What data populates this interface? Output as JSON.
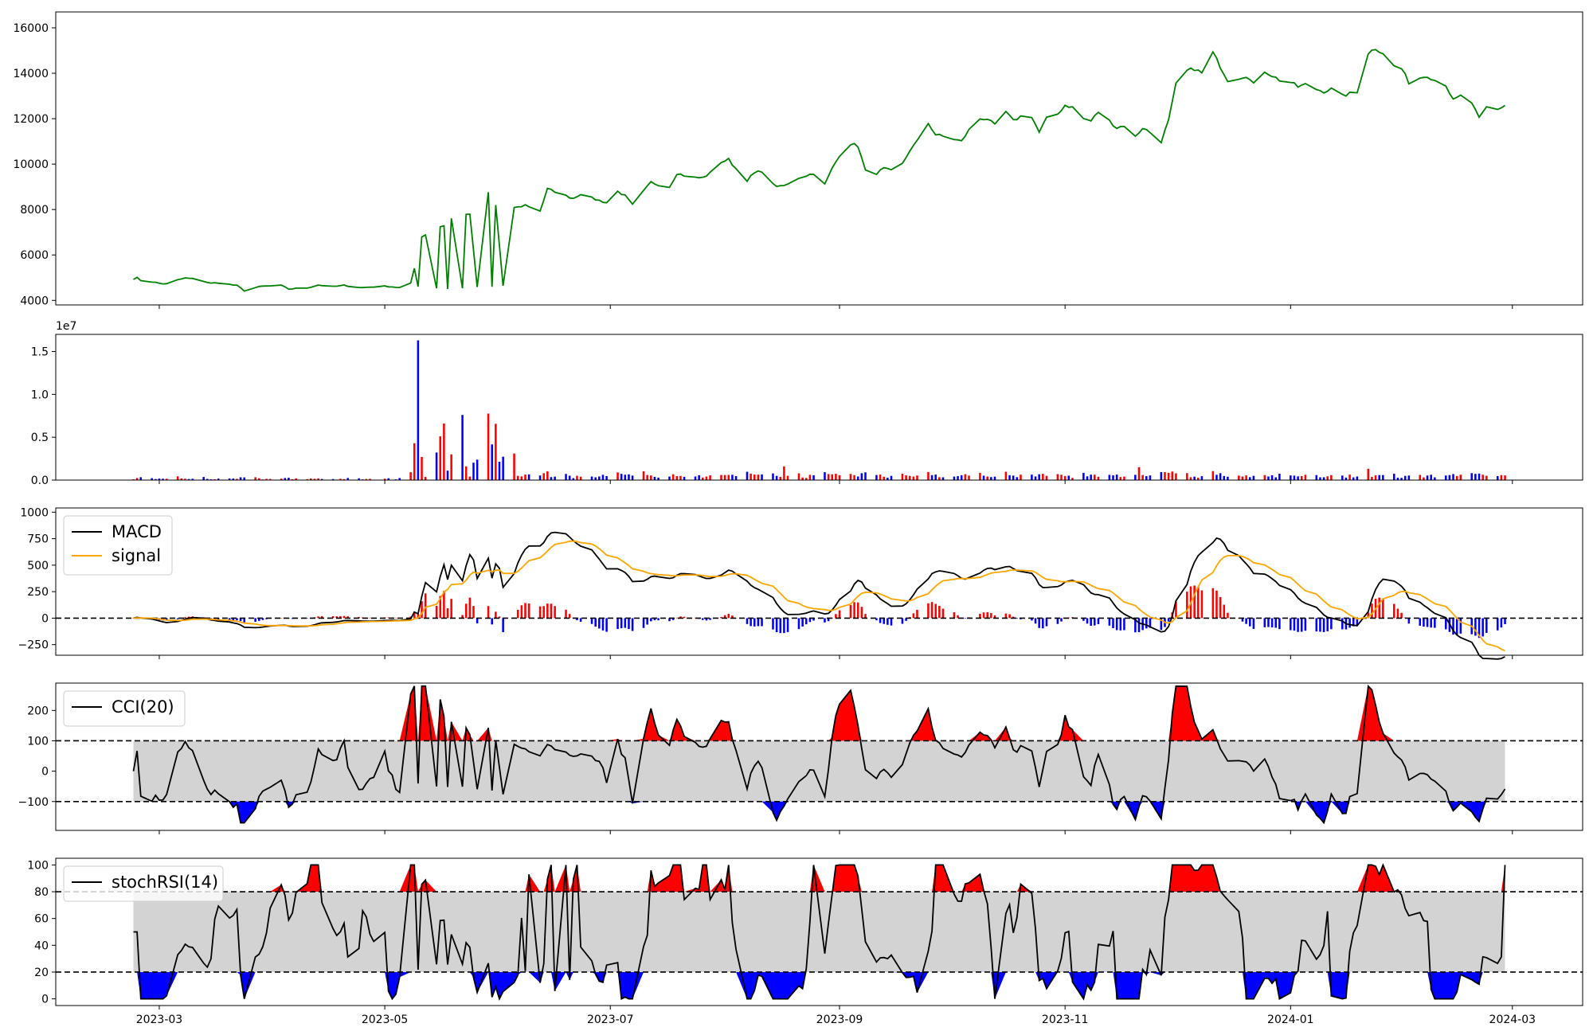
{
  "chart_data": [
    {
      "id": "price",
      "type": "line",
      "series": [
        {
          "color": "#008000",
          "points": [
            [
              "2023-02-22",
              4950
            ],
            [
              "2023-02-23",
              4990
            ],
            [
              "2023-02-24",
              4880
            ],
            [
              "2023-02-27",
              4820
            ],
            [
              "2023-03-01",
              4750
            ],
            [
              "2023-03-03",
              4720
            ],
            [
              "2023-03-06",
              4900
            ],
            [
              "2023-03-08",
              4980
            ],
            [
              "2023-03-10",
              4950
            ],
            [
              "2023-03-13",
              4850
            ],
            [
              "2023-03-15",
              4750
            ],
            [
              "2023-03-17",
              4780
            ],
            [
              "2023-03-20",
              4700
            ],
            [
              "2023-03-22",
              4650
            ],
            [
              "2023-03-24",
              4430
            ],
            [
              "2023-03-27",
              4560
            ],
            [
              "2023-03-29",
              4620
            ],
            [
              "2023-04-03",
              4650
            ],
            [
              "2023-04-05",
              4500
            ],
            [
              "2023-04-10",
              4550
            ],
            [
              "2023-04-13",
              4680
            ],
            [
              "2023-04-17",
              4600
            ],
            [
              "2023-04-20",
              4660
            ],
            [
              "2023-04-25",
              4560
            ],
            [
              "2023-04-28",
              4600
            ],
            [
              "2023-05-02",
              4620
            ],
            [
              "2023-05-05",
              4560
            ],
            [
              "2023-05-08",
              4740
            ],
            [
              "2023-05-10",
              4620
            ],
            [
              "2023-05-15",
              4540
            ],
            [
              "2023-05-18",
              4500
            ],
            [
              "2023-05-22",
              4550
            ],
            [
              "2023-05-26",
              4580
            ],
            [
              "2023-05-30",
              4600
            ],
            [
              "2023-06-02",
              4620
            ],
            [
              "2023-05-03",
              4600
            ],
            [
              "2023-05-05",
              4950
            ],
            [
              "2023-05-08",
              6200
            ],
            [
              "2023-05-10",
              6700
            ],
            [
              "2023-05-12",
              6900
            ],
            [
              "2023-05-15",
              7200
            ],
            [
              "2023-05-17",
              7300
            ],
            [
              "2023-05-19",
              7600
            ],
            [
              "2023-05-22",
              7700
            ],
            [
              "2023-05-24",
              7800
            ],
            [
              "2023-05-26",
              8700
            ],
            [
              "2023-05-29",
              8750
            ],
            [
              "2023-05-31",
              8200
            ],
            [
              "2023-06-02",
              8100
            ],
            [
              "2023-06-06",
              8100
            ],
            [
              "2023-06-08",
              8200
            ],
            [
              "2023-06-12",
              7950
            ],
            [
              "2023-06-14",
              8900
            ],
            [
              "2023-06-16",
              8800
            ],
            [
              "2023-06-19",
              8600
            ],
            [
              "2023-06-21",
              8500
            ],
            [
              "2023-06-23",
              8700
            ],
            [
              "2023-06-26",
              8500
            ],
            [
              "2023-06-28",
              8400
            ],
            [
              "2023-06-30",
              8300
            ],
            [
              "2023-07-03",
              8800
            ],
            [
              "2023-07-05",
              8600
            ],
            [
              "2023-07-07",
              8200
            ],
            [
              "2023-07-10",
              8800
            ],
            [
              "2023-07-12",
              9200
            ],
            [
              "2023-07-14",
              9100
            ],
            [
              "2023-07-17",
              9000
            ],
            [
              "2023-07-19",
              9600
            ],
            [
              "2023-07-21",
              9500
            ],
            [
              "2023-07-24",
              9400
            ],
            [
              "2023-07-26",
              9400
            ],
            [
              "2023-07-28",
              9600
            ],
            [
              "2023-07-31",
              10100
            ],
            [
              "2023-08-02",
              10200
            ],
            [
              "2023-08-04",
              9800
            ],
            [
              "2023-08-07",
              9300
            ],
            [
              "2023-08-09",
              9600
            ],
            [
              "2023-08-11",
              9700
            ],
            [
              "2023-08-14",
              9100
            ],
            [
              "2023-08-16",
              9000
            ],
            [
              "2023-08-18",
              9100
            ],
            [
              "2023-08-21",
              9400
            ],
            [
              "2023-08-23",
              9500
            ],
            [
              "2023-08-25",
              9600
            ],
            [
              "2023-08-28",
              9100
            ],
            [
              "2023-08-30",
              9800
            ],
            [
              "2023-09-01",
              10400
            ],
            [
              "2023-09-04",
              10900
            ],
            [
              "2023-09-06",
              10800
            ],
            [
              "2023-09-08",
              9700
            ],
            [
              "2023-09-11",
              9600
            ],
            [
              "2023-09-13",
              9800
            ],
            [
              "2023-09-15",
              9700
            ],
            [
              "2023-09-18",
              10000
            ],
            [
              "2023-09-20",
              10600
            ],
            [
              "2023-09-22",
              11000
            ],
            [
              "2023-09-25",
              11800
            ],
            [
              "2023-09-27",
              11300
            ],
            [
              "2023-10-02",
              11100
            ],
            [
              "2023-10-04",
              11000
            ],
            [
              "2023-10-06",
              11500
            ],
            [
              "2023-10-09",
              12000
            ],
            [
              "2023-10-11",
              12000
            ],
            [
              "2023-10-13",
              11700
            ],
            [
              "2023-10-16",
              12300
            ],
            [
              "2023-10-18",
              11900
            ],
            [
              "2023-10-20",
              12100
            ],
            [
              "2023-10-23",
              12100
            ],
            [
              "2023-10-25",
              11400
            ],
            [
              "2023-10-27",
              12000
            ],
            [
              "2023-10-30",
              12200
            ],
            [
              "2023-11-01",
              12600
            ],
            [
              "2023-11-03",
              12500
            ],
            [
              "2023-11-06",
              12000
            ],
            [
              "2023-11-08",
              11900
            ],
            [
              "2023-11-10",
              12300
            ],
            [
              "2023-11-13",
              11900
            ],
            [
              "2023-11-15",
              11600
            ],
            [
              "2023-11-17",
              11700
            ],
            [
              "2023-11-20",
              11200
            ],
            [
              "2023-11-22",
              11600
            ],
            [
              "2023-11-24",
              11400
            ],
            [
              "2023-11-27",
              11000
            ],
            [
              "2023-11-29",
              11900
            ],
            [
              "2023-12-01",
              13500
            ],
            [
              "2023-12-04",
              14100
            ],
            [
              "2023-12-06",
              14200
            ],
            [
              "2023-12-08",
              14000
            ],
            [
              "2023-12-11",
              14900
            ],
            [
              "2023-12-13",
              14300
            ],
            [
              "2023-12-15",
              13700
            ],
            [
              "2023-12-18",
              13800
            ],
            [
              "2023-12-20",
              13900
            ],
            [
              "2023-12-22",
              13500
            ],
            [
              "2023-12-25",
              14100
            ],
            [
              "2023-12-27",
              13900
            ],
            [
              "2023-12-29",
              13700
            ],
            [
              "2024-01-01",
              13600
            ],
            [
              "2024-01-03",
              13400
            ],
            [
              "2024-01-05",
              13500
            ],
            [
              "2024-01-08",
              13300
            ],
            [
              "2024-01-10",
              13200
            ],
            [
              "2024-01-12",
              13300
            ],
            [
              "2024-01-15",
              13000
            ],
            [
              "2024-01-17",
              13100
            ],
            [
              "2024-01-19",
              13200
            ],
            [
              "2024-01-22",
              14900
            ],
            [
              "2024-01-24",
              15100
            ],
            [
              "2024-01-26",
              14900
            ],
            [
              "2024-01-29",
              14300
            ],
            [
              "2024-01-31",
              14200
            ],
            [
              "2024-02-02",
              13600
            ],
            [
              "2024-02-05",
              13800
            ],
            [
              "2024-02-07",
              13900
            ],
            [
              "2024-02-09",
              13700
            ],
            [
              "2024-02-12",
              13500
            ],
            [
              "2024-02-14",
              12800
            ],
            [
              "2024-02-16",
              13000
            ],
            [
              "2024-02-19",
              12700
            ],
            [
              "2024-02-21",
              12000
            ],
            [
              "2024-02-23",
              12500
            ],
            [
              "2024-02-26",
              12400
            ],
            [
              "2024-02-28",
              12600
            ]
          ]
        }
      ],
      "ylim": [
        3800,
        16700
      ],
      "yticks": [
        4000,
        6000,
        8000,
        10000,
        12000,
        14000,
        16000
      ],
      "ytick_labels": [
        "4000",
        "6000",
        "8000",
        "10000",
        "12000",
        "14000",
        "16000"
      ]
    },
    {
      "id": "volume",
      "type": "bar",
      "offset_text": "1e7",
      "ylim": [
        0,
        17000000
      ],
      "yticks": [
        0,
        5000000,
        10000000,
        15000000
      ],
      "ytick_labels": [
        "0.0",
        "0.5",
        "1.0",
        "1.5"
      ],
      "up_color": "#ff0000",
      "down_color": "#0000ff"
    },
    {
      "id": "macd",
      "type": "line",
      "legend": [
        "MACD",
        "signal"
      ],
      "legend_position": "upper-left",
      "series_colors": [
        "#000000",
        "#ffa500"
      ],
      "hist_up_color": "#ff0000",
      "hist_down_color": "#0000ff",
      "zero_line": 0,
      "ylim": [
        -350,
        1040
      ],
      "yticks": [
        -250,
        0,
        250,
        500,
        750,
        1000
      ],
      "ytick_labels": [
        "−250",
        "0",
        "250",
        "500",
        "750",
        "1000"
      ]
    },
    {
      "id": "cci",
      "type": "area",
      "legend": [
        "CCI(20)"
      ],
      "legend_position": "upper-left",
      "line_color": "#000000",
      "band_color": "#d3d3d3",
      "over_color": "#ff0000",
      "under_color": "#0000ff",
      "thresholds": [
        100,
        -100
      ],
      "ylim": [
        -195,
        290
      ],
      "yticks": [
        -100,
        0,
        100,
        200
      ],
      "ytick_labels": [
        "−100",
        "0",
        "100",
        "200"
      ]
    },
    {
      "id": "stochrsi",
      "type": "area",
      "legend": [
        "stochRSI(14)"
      ],
      "legend_position": "upper-left",
      "line_color": "#000000",
      "band_color": "#d3d3d3",
      "over_color": "#ff0000",
      "under_color": "#0000ff",
      "thresholds": [
        80,
        20
      ],
      "ylim": [
        -5,
        105
      ],
      "yticks": [
        0,
        20,
        40,
        60,
        80,
        100
      ],
      "ytick_labels": [
        "0",
        "20",
        "40",
        "60",
        "80",
        "100"
      ]
    }
  ],
  "x_axis": {
    "start": "2023-02-22",
    "end": "2024-02-28",
    "xlim": [
      "2023-02-01",
      "2024-03-20"
    ],
    "ticks": [
      "2023-03-01",
      "2023-05-01",
      "2023-07-01",
      "2023-09-01",
      "2023-11-01",
      "2024-01-01",
      "2024-03-01"
    ],
    "tick_labels": [
      "2023-03",
      "2023-05",
      "2023-07",
      "2023-09",
      "2023-11",
      "2024-01",
      "2024-03"
    ]
  }
}
